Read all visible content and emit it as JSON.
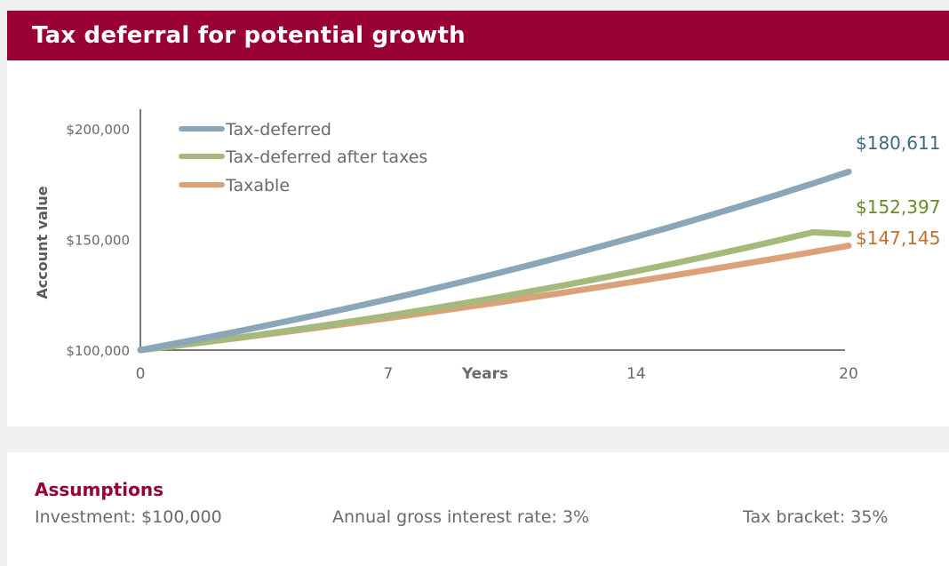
{
  "header": {
    "title": "Tax deferral for potential growth"
  },
  "chart_data": {
    "type": "line",
    "xlabel": "Years",
    "ylabel": "Account value",
    "xlim": [
      0,
      20
    ],
    "ylim": [
      100000,
      200000
    ],
    "x_ticks": [
      "0",
      "7",
      "14",
      "20"
    ],
    "x_tick_values": [
      0,
      7,
      14,
      20
    ],
    "y_ticks": [
      "$100,000",
      "$150,000",
      "$200,000"
    ],
    "y_tick_values": [
      100000,
      150000,
      200000
    ],
    "grid": false,
    "legend_position": "top-left",
    "x": [
      0,
      1,
      2,
      3,
      4,
      5,
      6,
      7,
      8,
      9,
      10,
      11,
      12,
      13,
      14,
      15,
      16,
      17,
      18,
      19,
      20
    ],
    "series": [
      {
        "name": "Tax-deferred",
        "color": "#8aa6b8",
        "values": [
          100000,
          103000,
          106090,
          109273,
          112551,
          115927,
          119405,
          122987,
          126677,
          130477,
          134392,
          138423,
          142576,
          146853,
          151259,
          155797,
          160471,
          165285,
          170243,
          175351,
          180611
        ],
        "end_label": "$180,611",
        "end_label_color": "#3e6b82"
      },
      {
        "name": "Tax-deferred after taxes",
        "color": "#a6b97d",
        "values": [
          100000,
          101950,
          104008,
          106146,
          108369,
          110677,
          113074,
          115560,
          118139,
          120811,
          123580,
          126447,
          129415,
          132487,
          135667,
          138955,
          142355,
          145870,
          149500,
          153248,
          152397
        ],
        "end_label": "$152,397",
        "end_label_color": "#6b8a2c"
      },
      {
        "name": "Taxable",
        "color": "#dba27a",
        "values": [
          100000,
          101950,
          103938,
          105965,
          108031,
          110138,
          112286,
          114475,
          116707,
          118983,
          121303,
          123669,
          126080,
          128539,
          131045,
          133600,
          136206,
          138862,
          141570,
          144330,
          147145
        ],
        "end_label": "$147,145",
        "end_label_color": "#c0702e"
      }
    ]
  },
  "assumptions": {
    "title": "Assumptions",
    "investment": "Investment: $100,000",
    "rate": "Annual gross interest rate: 3%",
    "tax": "Tax bracket: 35%"
  }
}
